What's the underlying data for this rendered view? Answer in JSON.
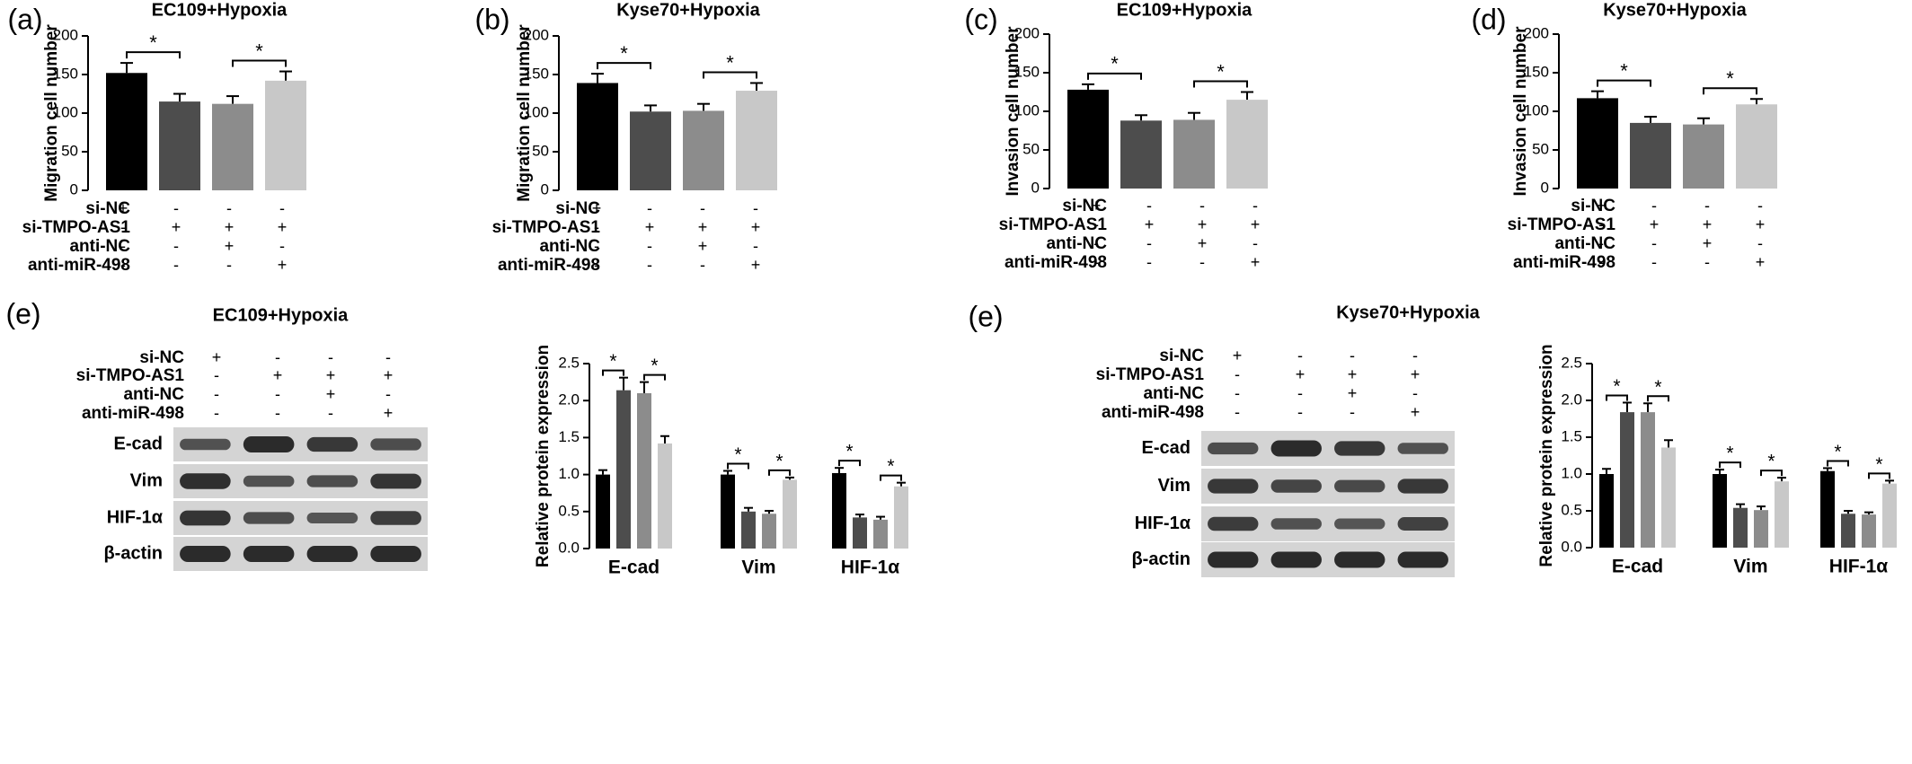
{
  "colors": {
    "bar_fills": [
      "#000000",
      "#4d4d4d",
      "#8c8c8c",
      "#c8c8c8"
    ],
    "text": "#000000",
    "blot_bg": "#d4d4d4",
    "blot_band": "#2b2b2b"
  },
  "chart_data": [
    {
      "type": "bar",
      "panel_label": "(a)",
      "title": "EC109+Hypoxia",
      "ylabel": "Migration cell number",
      "ylim": [
        0,
        200
      ],
      "yticks": [
        "0",
        "50",
        "100",
        "150",
        "200"
      ],
      "values": [
        152,
        115,
        112,
        142
      ],
      "errors": [
        13,
        10,
        10,
        12
      ],
      "significance": [
        {
          "between": [
            0,
            1
          ],
          "label": "*"
        },
        {
          "between": [
            2,
            3
          ],
          "label": "*"
        }
      ],
      "conditions": [
        {
          "label": "si-NC",
          "marks": [
            "+",
            "-",
            "-",
            "-"
          ]
        },
        {
          "label": "si-TMPO-AS1",
          "marks": [
            "-",
            "+",
            "+",
            "+"
          ]
        },
        {
          "label": "anti-NC",
          "marks": [
            "-",
            "-",
            "+",
            "-"
          ]
        },
        {
          "label": "anti-miR-498",
          "marks": [
            "-",
            "-",
            "-",
            "+"
          ]
        }
      ]
    },
    {
      "type": "bar",
      "panel_label": "(b)",
      "title": "Kyse70+Hypoxia",
      "ylabel": "Migration cell number",
      "ylim": [
        0,
        200
      ],
      "yticks": [
        "0",
        "50",
        "100",
        "150",
        "200"
      ],
      "values": [
        139,
        102,
        103,
        129
      ],
      "errors": [
        12,
        8,
        9,
        10
      ],
      "significance": [
        {
          "between": [
            0,
            1
          ],
          "label": "*"
        },
        {
          "between": [
            2,
            3
          ],
          "label": "*"
        }
      ],
      "conditions": [
        {
          "label": "si-NC",
          "marks": [
            "+",
            "-",
            "-",
            "-"
          ]
        },
        {
          "label": "si-TMPO-AS1",
          "marks": [
            "-",
            "+",
            "+",
            "+"
          ]
        },
        {
          "label": "anti-NC",
          "marks": [
            "-",
            "-",
            "+",
            "-"
          ]
        },
        {
          "label": "anti-miR-498",
          "marks": [
            "-",
            "-",
            "-",
            "+"
          ]
        }
      ]
    },
    {
      "type": "bar",
      "panel_label": "(c)",
      "title": "EC109+Hypoxia",
      "ylabel": "Invasion cell number",
      "ylim": [
        0,
        200
      ],
      "yticks": [
        "0",
        "50",
        "100",
        "150",
        "200"
      ],
      "values": [
        128,
        88,
        89,
        115
      ],
      "errors": [
        7,
        7,
        9,
        10
      ],
      "significance": [
        {
          "between": [
            0,
            1
          ],
          "label": "*"
        },
        {
          "between": [
            2,
            3
          ],
          "label": "*"
        }
      ],
      "conditions": [
        {
          "label": "si-NC",
          "marks": [
            "+",
            "-",
            "-",
            "-"
          ]
        },
        {
          "label": "si-TMPO-AS1",
          "marks": [
            "-",
            "+",
            "+",
            "+"
          ]
        },
        {
          "label": "anti-NC",
          "marks": [
            "-",
            "-",
            "+",
            "-"
          ]
        },
        {
          "label": "anti-miR-498",
          "marks": [
            "-",
            "-",
            "-",
            "+"
          ]
        }
      ]
    },
    {
      "type": "bar",
      "panel_label": "(d)",
      "title": "Kyse70+Hypoxia",
      "ylabel": "Invasion cell number",
      "ylim": [
        0,
        200
      ],
      "yticks": [
        "0",
        "50",
        "100",
        "150",
        "200"
      ],
      "values": [
        117,
        85,
        83,
        109
      ],
      "errors": [
        9,
        8,
        8,
        7
      ],
      "significance": [
        {
          "between": [
            0,
            1
          ],
          "label": "*"
        },
        {
          "between": [
            2,
            3
          ],
          "label": "*"
        }
      ],
      "conditions": [
        {
          "label": "si-NC",
          "marks": [
            "+",
            "-",
            "-",
            "-"
          ]
        },
        {
          "label": "si-TMPO-AS1",
          "marks": [
            "-",
            "+",
            "+",
            "+"
          ]
        },
        {
          "label": "anti-NC",
          "marks": [
            "-",
            "-",
            "+",
            "-"
          ]
        },
        {
          "label": "anti-miR-498",
          "marks": [
            "-",
            "-",
            "-",
            "+"
          ]
        }
      ]
    },
    {
      "type": "bar",
      "panel_label": "(e)",
      "title": "EC109+Hypoxia",
      "ylabel": "Relative protein expression",
      "ylim": [
        0,
        2.5
      ],
      "yticks": [
        "0.0",
        "0.5",
        "1.0",
        "1.5",
        "2.0",
        "2.5"
      ],
      "categories": [
        "E-cad",
        "Vim",
        "HIF-1α"
      ],
      "series_values": [
        [
          1.0,
          2.14,
          2.1,
          1.42
        ],
        [
          1.0,
          0.5,
          0.47,
          0.93
        ],
        [
          1.02,
          0.42,
          0.39,
          0.84
        ]
      ],
      "series_errors": [
        [
          0.06,
          0.17,
          0.15,
          0.1
        ],
        [
          0.05,
          0.05,
          0.04,
          0.03
        ],
        [
          0.07,
          0.04,
          0.04,
          0.05
        ]
      ],
      "significance": [
        {
          "between": [
            0,
            1
          ],
          "label": "*"
        },
        {
          "between": [
            2,
            3
          ],
          "label": "*"
        }
      ],
      "conditions": [
        {
          "label": "si-NC",
          "marks": [
            "+",
            "-",
            "-",
            "-"
          ]
        },
        {
          "label": "si-TMPO-AS1",
          "marks": [
            "-",
            "+",
            "+",
            "+"
          ]
        },
        {
          "label": "anti-NC",
          "marks": [
            "-",
            "-",
            "+",
            "-"
          ]
        },
        {
          "label": "anti-miR-498",
          "marks": [
            "-",
            "-",
            "-",
            "+"
          ]
        }
      ],
      "blot_rows": [
        "E-cad",
        "Vim",
        "HIF-1α",
        "β-actin"
      ],
      "blot_intensity": [
        [
          0.55,
          1.0,
          0.85,
          0.6
        ],
        [
          0.95,
          0.55,
          0.6,
          0.9
        ],
        [
          0.9,
          0.6,
          0.5,
          0.8
        ],
        [
          1.0,
          1.0,
          1.0,
          1.0
        ]
      ]
    },
    {
      "type": "bar",
      "panel_label": "(e)",
      "title": "Kyse70+Hypoxia",
      "ylabel": "Relative protein expression",
      "ylim": [
        0,
        2.5
      ],
      "yticks": [
        "0.0",
        "0.5",
        "1.0",
        "1.5",
        "2.0",
        "2.5"
      ],
      "categories": [
        "E-cad",
        "Vim",
        "HIF-1α"
      ],
      "series_values": [
        [
          1.0,
          1.84,
          1.84,
          1.36
        ],
        [
          1.0,
          0.54,
          0.51,
          0.9
        ],
        [
          1.04,
          0.46,
          0.45,
          0.87
        ]
      ],
      "series_errors": [
        [
          0.07,
          0.13,
          0.12,
          0.1
        ],
        [
          0.06,
          0.05,
          0.05,
          0.05
        ],
        [
          0.04,
          0.04,
          0.03,
          0.04
        ]
      ],
      "significance": [
        {
          "between": [
            0,
            1
          ],
          "label": "*"
        },
        {
          "between": [
            2,
            3
          ],
          "label": "*"
        }
      ],
      "conditions": [
        {
          "label": "si-NC",
          "marks": [
            "+",
            "-",
            "-",
            "-"
          ]
        },
        {
          "label": "si-TMPO-AS1",
          "marks": [
            "-",
            "+",
            "+",
            "+"
          ]
        },
        {
          "label": "anti-NC",
          "marks": [
            "-",
            "-",
            "+",
            "-"
          ]
        },
        {
          "label": "anti-miR-498",
          "marks": [
            "-",
            "-",
            "-",
            "+"
          ]
        }
      ],
      "blot_rows": [
        "E-cad",
        "Vim",
        "HIF-1α",
        "β-actin"
      ],
      "blot_intensity": [
        [
          0.6,
          1.0,
          0.85,
          0.55
        ],
        [
          0.85,
          0.7,
          0.65,
          0.85
        ],
        [
          0.8,
          0.55,
          0.5,
          0.75
        ],
        [
          1.0,
          1.0,
          1.0,
          1.0
        ]
      ]
    }
  ]
}
